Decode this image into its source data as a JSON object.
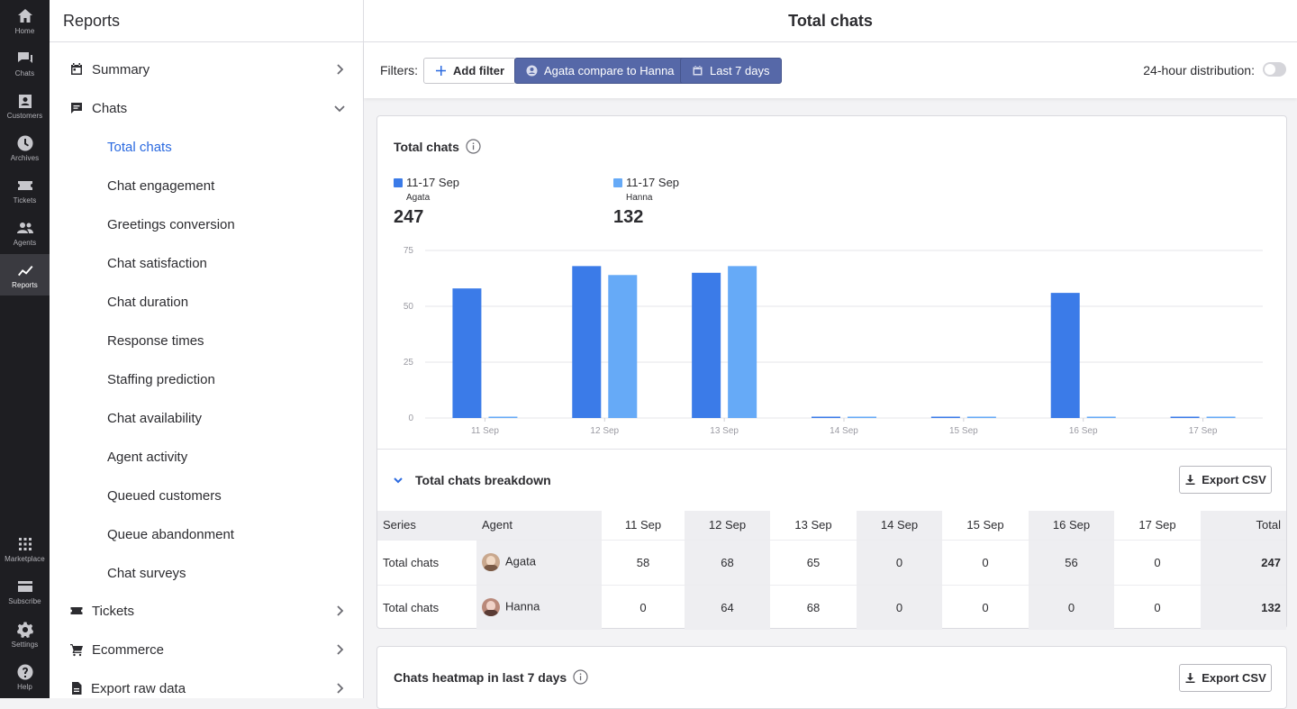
{
  "rail": {
    "items": [
      {
        "label": "Home",
        "icon": "home-icon"
      },
      {
        "label": "Chats",
        "icon": "chats-icon"
      },
      {
        "label": "Customers",
        "icon": "customers-icon"
      },
      {
        "label": "Archives",
        "icon": "archives-icon"
      },
      {
        "label": "Tickets",
        "icon": "tickets-icon"
      },
      {
        "label": "Agents",
        "icon": "agents-icon"
      },
      {
        "label": "Reports",
        "icon": "reports-icon",
        "active": true
      }
    ],
    "bottom_items": [
      {
        "label": "Marketplace",
        "icon": "marketplace-icon"
      },
      {
        "label": "Subscribe",
        "icon": "subscribe-icon"
      },
      {
        "label": "Settings",
        "icon": "settings-icon"
      },
      {
        "label": "Help",
        "icon": "help-icon"
      }
    ]
  },
  "sidebar": {
    "title": "Reports",
    "sections": [
      {
        "label": "Summary",
        "icon": "calendar-icon",
        "chevron": "right"
      },
      {
        "label": "Chats",
        "icon": "chat-bubble-icon",
        "chevron": "down",
        "expanded": true
      }
    ],
    "chat_items": [
      {
        "label": "Total chats",
        "active": true
      },
      {
        "label": "Chat engagement"
      },
      {
        "label": "Greetings conversion"
      },
      {
        "label": "Chat satisfaction"
      },
      {
        "label": "Chat duration"
      },
      {
        "label": "Response times"
      },
      {
        "label": "Staffing prediction"
      },
      {
        "label": "Chat availability"
      },
      {
        "label": "Agent activity"
      },
      {
        "label": "Queued customers"
      },
      {
        "label": "Queue abandonment"
      },
      {
        "label": "Chat surveys"
      }
    ],
    "after_sections": [
      {
        "label": "Tickets",
        "icon": "ticket-icon",
        "chevron": "right"
      },
      {
        "label": "Ecommerce",
        "icon": "cart-icon",
        "chevron": "right"
      },
      {
        "label": "Export raw data",
        "icon": "file-icon",
        "chevron": "right"
      }
    ]
  },
  "header": {
    "title": "Total chats"
  },
  "filters": {
    "label": "Filters:",
    "add_filter": "Add filter",
    "agent_compare": "Agata compare to Hanna",
    "date_range": "Last 7 days",
    "distribution_label": "24-hour distribution:",
    "distribution_on": false
  },
  "chart_card": {
    "title": "Total chats",
    "legend": [
      {
        "range": "11-17 Sep",
        "agent": "Agata",
        "total": "247",
        "color": "#3b7be8"
      },
      {
        "range": "11-17 Sep",
        "agent": "Hanna",
        "total": "132",
        "color": "#66aaf7"
      }
    ]
  },
  "chart_data": {
    "type": "bar",
    "categories": [
      "11 Sep",
      "12 Sep",
      "13 Sep",
      "14 Sep",
      "15 Sep",
      "16 Sep",
      "17 Sep"
    ],
    "series": [
      {
        "name": "Agata",
        "values": [
          58,
          68,
          65,
          0,
          0,
          56,
          0
        ],
        "color": "#3b7be8"
      },
      {
        "name": "Hanna",
        "values": [
          0,
          64,
          68,
          0,
          0,
          0,
          0
        ],
        "color": "#66aaf7"
      }
    ],
    "y_ticks": [
      "0",
      "25",
      "50",
      "75"
    ],
    "ylim": [
      0,
      75
    ],
    "grid": true
  },
  "breakdown": {
    "title": "Total chats breakdown",
    "export_label": "Export CSV",
    "columns": [
      "Series",
      "Agent",
      "11 Sep",
      "12 Sep",
      "13 Sep",
      "14 Sep",
      "15 Sep",
      "16 Sep",
      "17 Sep",
      "Total"
    ],
    "rows": [
      {
        "series": "Total chats",
        "agent": "Agata",
        "values": [
          "58",
          "68",
          "65",
          "0",
          "0",
          "56",
          "0"
        ],
        "total": "247"
      },
      {
        "series": "Total chats",
        "agent": "Hanna",
        "values": [
          "0",
          "64",
          "68",
          "0",
          "0",
          "0",
          "0"
        ],
        "total": "132"
      }
    ]
  },
  "heatmap_card": {
    "title": "Chats heatmap in last 7 days",
    "export_label": "Export CSV"
  }
}
